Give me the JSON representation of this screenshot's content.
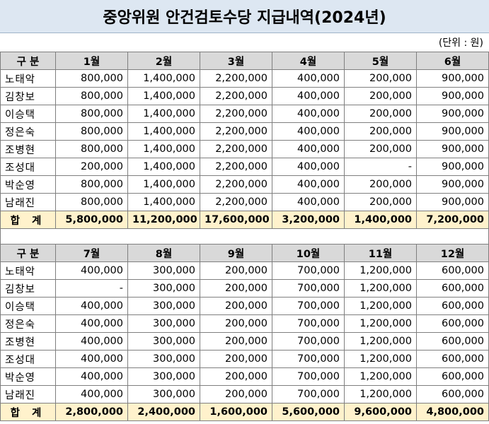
{
  "title": "중앙위원 안건검토수당 지급내역(2024년)",
  "unit": "(단위 : 원)",
  "header_label": "구 분",
  "total_label": "합 계",
  "colors": {
    "title_bg": "#dde7f2",
    "header_bg": "#d9d9d9",
    "total_bg": "#fff2cc"
  },
  "first_half": {
    "months": [
      "1월",
      "2월",
      "3월",
      "4월",
      "5월",
      "6월"
    ],
    "rows": [
      {
        "name": "노태악",
        "values": [
          "800,000",
          "1,400,000",
          "2,200,000",
          "400,000",
          "200,000",
          "900,000"
        ]
      },
      {
        "name": "김창보",
        "values": [
          "800,000",
          "1,400,000",
          "2,200,000",
          "400,000",
          "200,000",
          "900,000"
        ]
      },
      {
        "name": "이승택",
        "values": [
          "800,000",
          "1,400,000",
          "2,200,000",
          "400,000",
          "200,000",
          "900,000"
        ]
      },
      {
        "name": "정은숙",
        "values": [
          "800,000",
          "1,400,000",
          "2,200,000",
          "400,000",
          "200,000",
          "900,000"
        ]
      },
      {
        "name": "조병현",
        "values": [
          "800,000",
          "1,400,000",
          "2,200,000",
          "400,000",
          "200,000",
          "900,000"
        ]
      },
      {
        "name": "조성대",
        "values": [
          "200,000",
          "1,400,000",
          "2,200,000",
          "400,000",
          "-",
          "900,000"
        ]
      },
      {
        "name": "박순영",
        "values": [
          "800,000",
          "1,400,000",
          "2,200,000",
          "400,000",
          "200,000",
          "900,000"
        ]
      },
      {
        "name": "남래진",
        "values": [
          "800,000",
          "1,400,000",
          "2,200,000",
          "400,000",
          "200,000",
          "900,000"
        ]
      }
    ],
    "totals": [
      "5,800,000",
      "11,200,000",
      "17,600,000",
      "3,200,000",
      "1,400,000",
      "7,200,000"
    ]
  },
  "second_half": {
    "months": [
      "7월",
      "8월",
      "9월",
      "10월",
      "11월",
      "12월"
    ],
    "rows": [
      {
        "name": "노태악",
        "values": [
          "400,000",
          "300,000",
          "200,000",
          "700,000",
          "1,200,000",
          "600,000"
        ]
      },
      {
        "name": "김창보",
        "values": [
          "-",
          "300,000",
          "200,000",
          "700,000",
          "1,200,000",
          "600,000"
        ]
      },
      {
        "name": "이승택",
        "values": [
          "400,000",
          "300,000",
          "200,000",
          "700,000",
          "1,200,000",
          "600,000"
        ]
      },
      {
        "name": "정은숙",
        "values": [
          "400,000",
          "300,000",
          "200,000",
          "700,000",
          "1,200,000",
          "600,000"
        ]
      },
      {
        "name": "조병현",
        "values": [
          "400,000",
          "300,000",
          "200,000",
          "700,000",
          "1,200,000",
          "600,000"
        ]
      },
      {
        "name": "조성대",
        "values": [
          "400,000",
          "300,000",
          "200,000",
          "700,000",
          "1,200,000",
          "600,000"
        ]
      },
      {
        "name": "박순영",
        "values": [
          "400,000",
          "300,000",
          "200,000",
          "700,000",
          "1,200,000",
          "600,000"
        ]
      },
      {
        "name": "남래진",
        "values": [
          "400,000",
          "300,000",
          "200,000",
          "700,000",
          "1,200,000",
          "600,000"
        ]
      }
    ],
    "totals": [
      "2,800,000",
      "2,400,000",
      "1,600,000",
      "5,600,000",
      "9,600,000",
      "4,800,000"
    ]
  }
}
